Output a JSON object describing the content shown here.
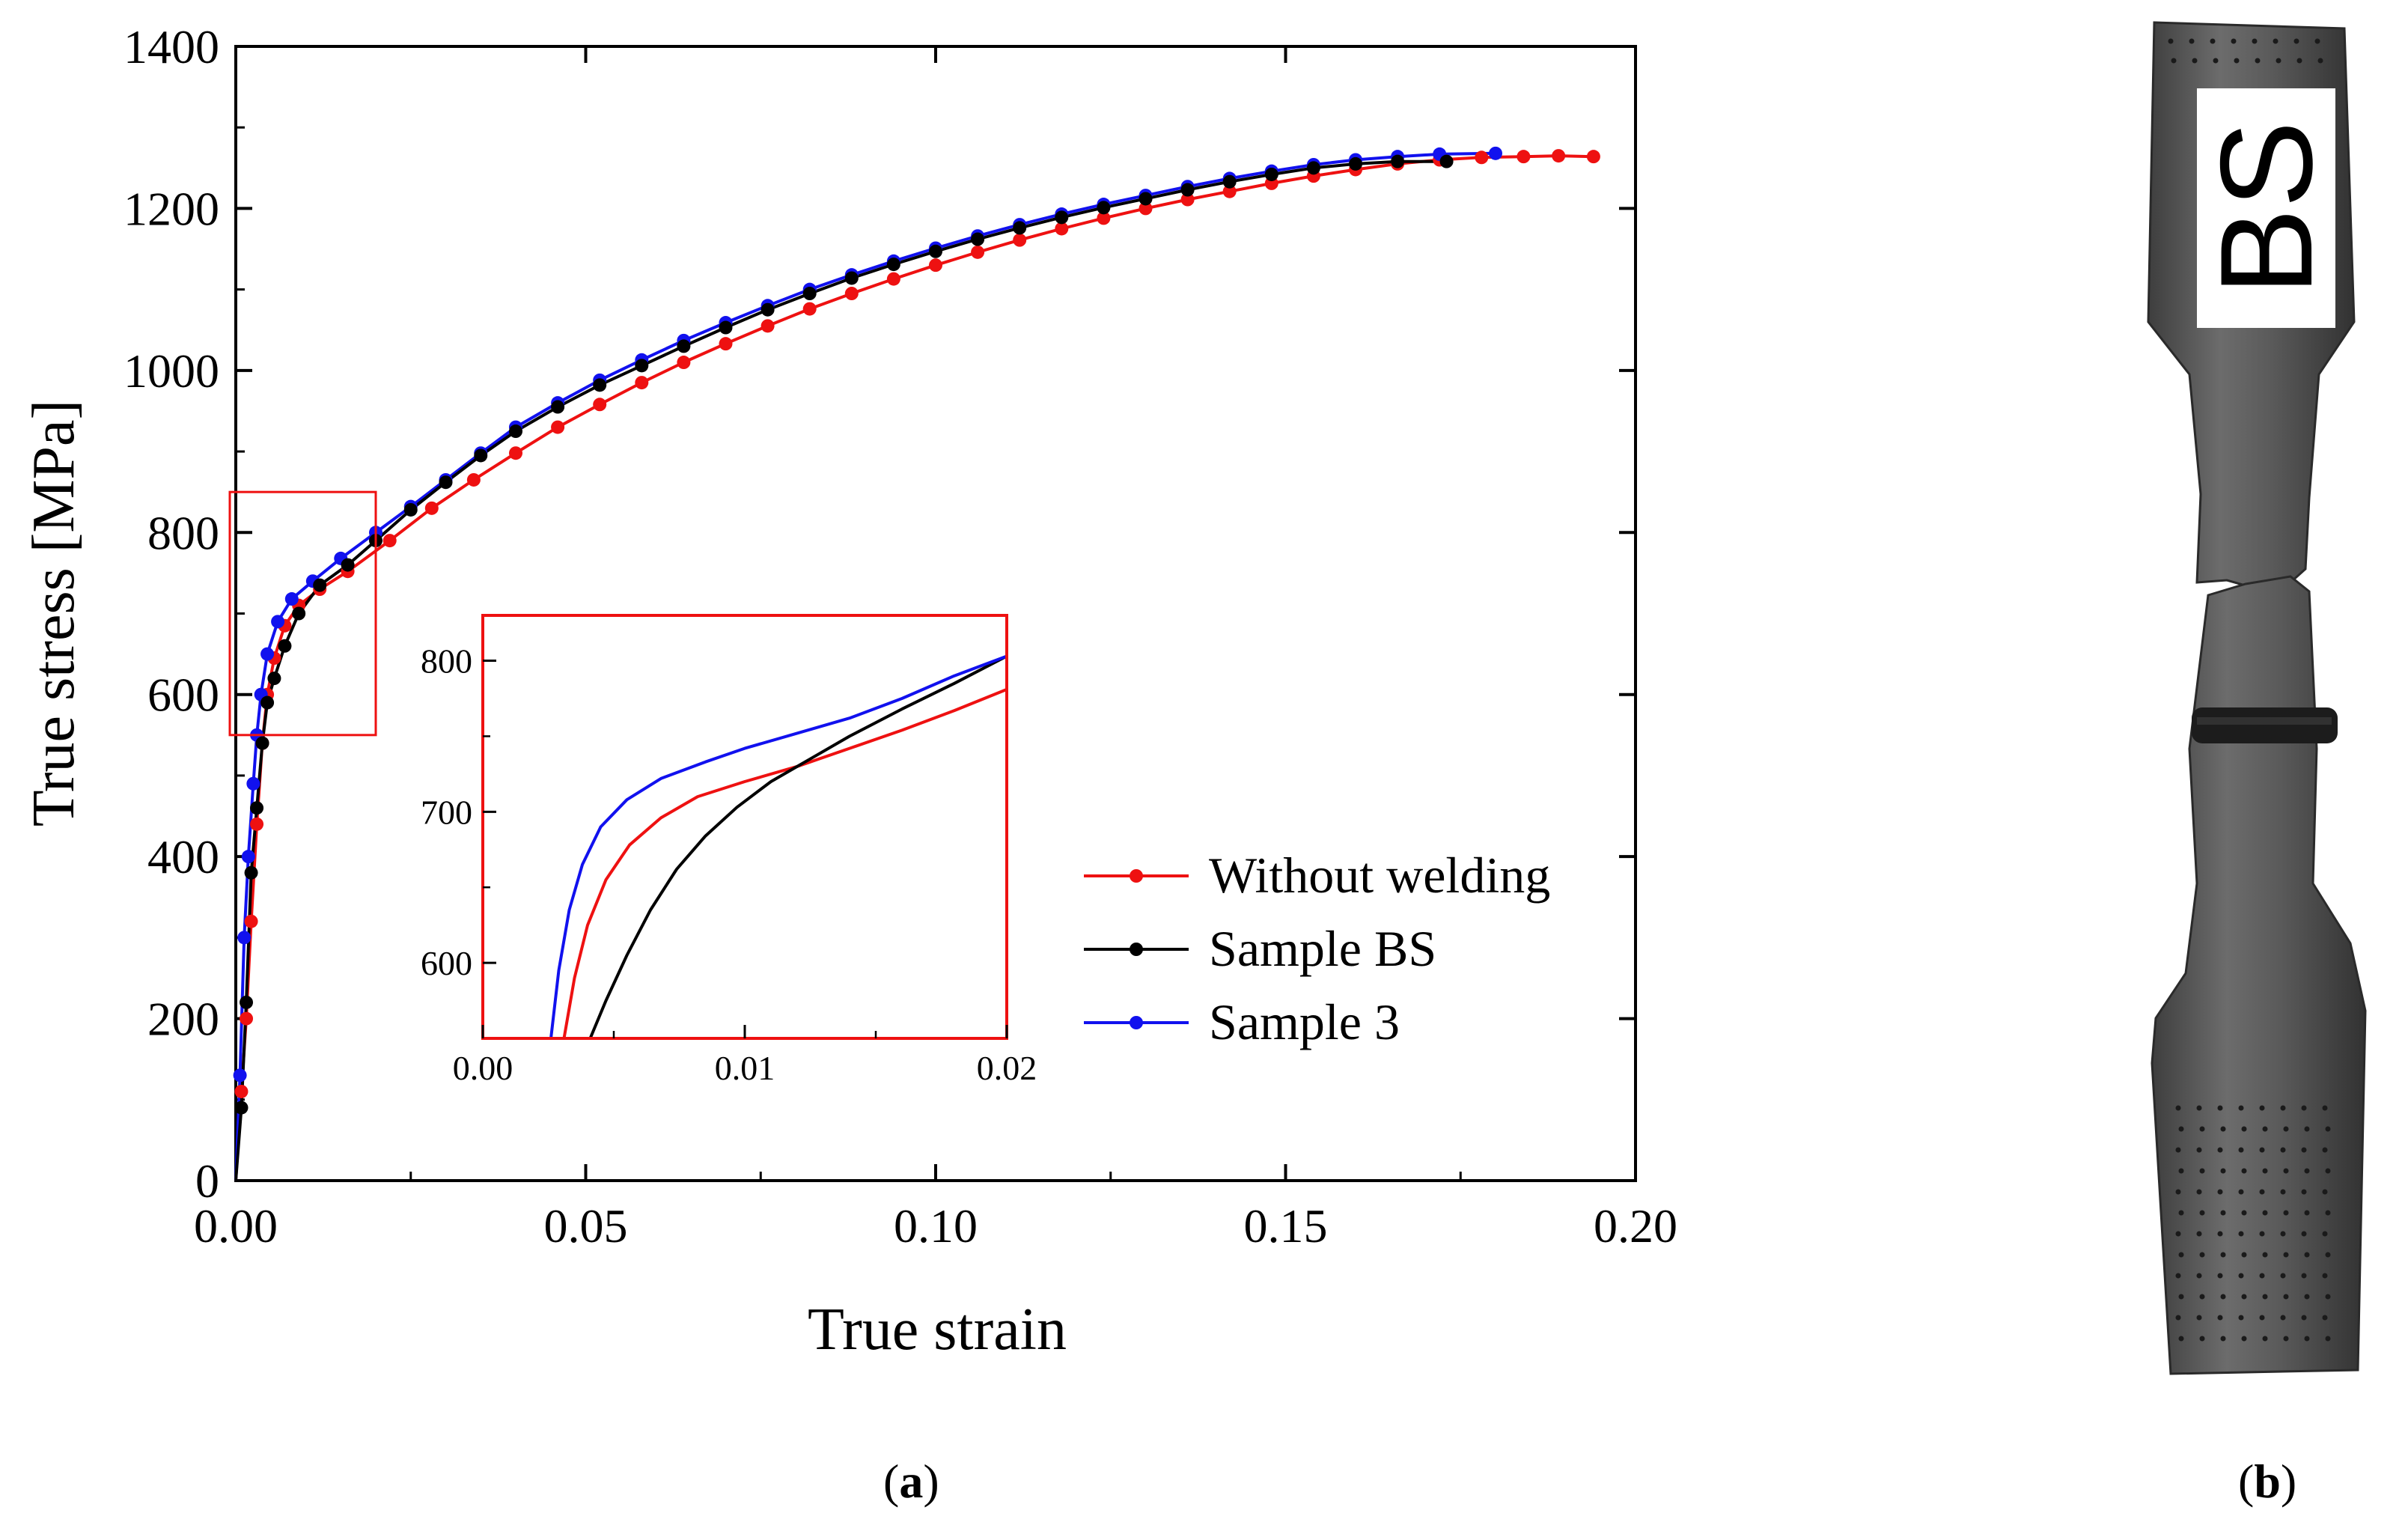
{
  "panel_labels": {
    "a": "a",
    "b": "b"
  },
  "colors": {
    "without_welding": "#ee1111",
    "sample_bs": "#000000",
    "sample_3": "#1111ee",
    "zoom_box": "#ee1111"
  },
  "photo": {
    "specimen_label": "BS",
    "icon": "fractured-tensile-specimen-photo"
  },
  "chart_data": [
    {
      "type": "line",
      "title": "",
      "xlabel": "True strain",
      "ylabel": "True stress [MPa]",
      "xlim": [
        0.0,
        0.2
      ],
      "ylim": [
        0,
        1400
      ],
      "xticks": [
        0.0,
        0.05,
        0.1,
        0.15,
        0.2
      ],
      "xtick_labels": [
        "0.00",
        "0.05",
        "0.10",
        "0.15",
        "0.20"
      ],
      "yticks": [
        0,
        200,
        400,
        600,
        800,
        1000,
        1200,
        1400
      ],
      "ytick_labels": [
        "0",
        "200",
        "400",
        "600",
        "800",
        "1000",
        "1200",
        "1400"
      ],
      "legend_position": "right-middle",
      "grid": false,
      "zoom_region": {
        "x": [
          0.0,
          0.02
        ],
        "y": [
          550,
          850
        ]
      },
      "series": [
        {
          "name": "Without welding",
          "color": "#ee1111",
          "x": [
            0.0,
            0.0008,
            0.0015,
            0.0022,
            0.003,
            0.0038,
            0.0045,
            0.0055,
            0.007,
            0.009,
            0.012,
            0.016,
            0.022,
            0.028,
            0.034,
            0.04,
            0.046,
            0.052,
            0.058,
            0.064,
            0.07,
            0.076,
            0.082,
            0.088,
            0.094,
            0.1,
            0.106,
            0.112,
            0.118,
            0.124,
            0.13,
            0.136,
            0.142,
            0.148,
            0.154,
            0.16,
            0.166,
            0.172,
            0.178,
            0.184,
            0.189,
            0.194
          ],
          "y": [
            0,
            110,
            200,
            320,
            440,
            540,
            600,
            645,
            685,
            710,
            730,
            752,
            790,
            830,
            865,
            898,
            930,
            958,
            985,
            1010,
            1033,
            1055,
            1076,
            1095,
            1113,
            1130,
            1146,
            1161,
            1175,
            1188,
            1200,
            1211,
            1221,
            1231,
            1240,
            1248,
            1255,
            1260,
            1263,
            1264,
            1265,
            1264
          ]
        },
        {
          "name": "Sample BS",
          "color": "#000000",
          "x": [
            0.0,
            0.0008,
            0.0015,
            0.0022,
            0.003,
            0.0038,
            0.0045,
            0.0055,
            0.007,
            0.009,
            0.012,
            0.016,
            0.02,
            0.025,
            0.03,
            0.035,
            0.04,
            0.046,
            0.052,
            0.058,
            0.064,
            0.07,
            0.076,
            0.082,
            0.088,
            0.094,
            0.1,
            0.106,
            0.112,
            0.118,
            0.124,
            0.13,
            0.136,
            0.142,
            0.148,
            0.154,
            0.16,
            0.166,
            0.173
          ],
          "y": [
            0,
            90,
            220,
            380,
            460,
            540,
            590,
            620,
            660,
            700,
            735,
            760,
            790,
            828,
            862,
            895,
            925,
            955,
            982,
            1006,
            1030,
            1053,
            1075,
            1095,
            1114,
            1131,
            1147,
            1162,
            1176,
            1189,
            1201,
            1212,
            1223,
            1233,
            1242,
            1250,
            1255,
            1258,
            1258
          ]
        },
        {
          "name": "Sample 3",
          "color": "#1111ee",
          "x": [
            0.0,
            0.0006,
            0.0012,
            0.0018,
            0.0025,
            0.003,
            0.0036,
            0.0045,
            0.006,
            0.008,
            0.011,
            0.015,
            0.02,
            0.025,
            0.03,
            0.035,
            0.04,
            0.046,
            0.052,
            0.058,
            0.064,
            0.07,
            0.076,
            0.082,
            0.088,
            0.094,
            0.1,
            0.106,
            0.112,
            0.118,
            0.124,
            0.13,
            0.136,
            0.142,
            0.148,
            0.154,
            0.16,
            0.166,
            0.172,
            0.18
          ],
          "y": [
            0,
            130,
            300,
            400,
            490,
            550,
            600,
            650,
            690,
            718,
            740,
            768,
            800,
            832,
            865,
            898,
            930,
            960,
            988,
            1013,
            1037,
            1059,
            1080,
            1100,
            1118,
            1135,
            1151,
            1166,
            1180,
            1193,
            1205,
            1216,
            1227,
            1237,
            1246,
            1254,
            1260,
            1264,
            1267,
            1268
          ]
        }
      ]
    },
    {
      "type": "line",
      "title": "",
      "xlabel": "",
      "ylabel": "",
      "xlim": [
        0.0,
        0.02
      ],
      "ylim": [
        550,
        830
      ],
      "xticks": [
        0.0,
        0.01,
        0.02
      ],
      "xtick_labels": [
        "0.00",
        "0.01",
        "0.02"
      ],
      "yticks": [
        600,
        700,
        800
      ],
      "ytick_labels": [
        "600",
        "700",
        "800"
      ],
      "grid": false,
      "series": [
        {
          "name": "Without welding",
          "color": "#ee1111",
          "x": [
            0.0031,
            0.0035,
            0.004,
            0.0047,
            0.0056,
            0.0068,
            0.0082,
            0.01,
            0.012,
            0.014,
            0.016,
            0.018,
            0.02
          ],
          "y": [
            550,
            590,
            625,
            655,
            678,
            696,
            710,
            720,
            730,
            742,
            754,
            767,
            781
          ]
        },
        {
          "name": "Sample BS",
          "color": "#000000",
          "x": [
            0.0041,
            0.0047,
            0.0055,
            0.0064,
            0.0074,
            0.0085,
            0.0097,
            0.011,
            0.0125,
            0.014,
            0.016,
            0.018,
            0.02
          ],
          "y": [
            550,
            575,
            605,
            635,
            662,
            684,
            703,
            720,
            735,
            750,
            768,
            785,
            803
          ]
        },
        {
          "name": "Sample 3",
          "color": "#1111ee",
          "x": [
            0.0026,
            0.0029,
            0.0033,
            0.0038,
            0.0045,
            0.0055,
            0.0068,
            0.0085,
            0.01,
            0.012,
            0.014,
            0.016,
            0.018,
            0.02
          ],
          "y": [
            550,
            595,
            635,
            665,
            690,
            708,
            722,
            733,
            742,
            752,
            762,
            775,
            790,
            803
          ]
        }
      ]
    }
  ]
}
